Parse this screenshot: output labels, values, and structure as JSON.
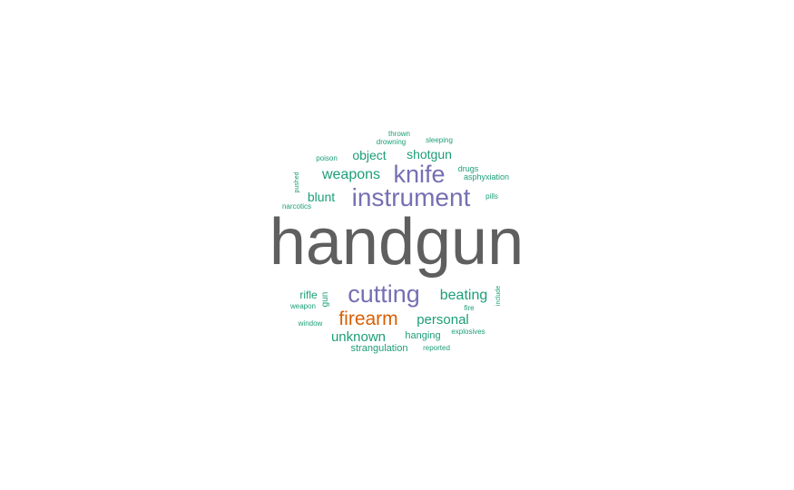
{
  "chart_data": {
    "type": "wordcloud",
    "colors": {
      "grey": "#5f5f5f",
      "purple": "#7570b3",
      "orange": "#d95f02",
      "green": "#1b9e77"
    },
    "words": [
      {
        "text": "handgun",
        "weight": 100,
        "color": "grey"
      },
      {
        "text": "instrument",
        "weight": 40,
        "color": "purple"
      },
      {
        "text": "knife",
        "weight": 38,
        "color": "purple"
      },
      {
        "text": "cutting",
        "weight": 38,
        "color": "purple"
      },
      {
        "text": "firearm",
        "weight": 30,
        "color": "orange"
      },
      {
        "text": "beating",
        "weight": 22,
        "color": "green"
      },
      {
        "text": "weapons",
        "weight": 22,
        "color": "green"
      },
      {
        "text": "personal",
        "weight": 21,
        "color": "green"
      },
      {
        "text": "unknown",
        "weight": 21,
        "color": "green"
      },
      {
        "text": "object",
        "weight": 20,
        "color": "green"
      },
      {
        "text": "shotgun",
        "weight": 20,
        "color": "green"
      },
      {
        "text": "blunt",
        "weight": 20,
        "color": "green"
      },
      {
        "text": "rifle",
        "weight": 17,
        "color": "green"
      },
      {
        "text": "gun",
        "weight": 14,
        "color": "green"
      },
      {
        "text": "strangulation",
        "weight": 14,
        "color": "green"
      },
      {
        "text": "hanging",
        "weight": 14,
        "color": "green"
      },
      {
        "text": "asphyxiation",
        "weight": 12,
        "color": "green"
      },
      {
        "text": "drugs",
        "weight": 12,
        "color": "green"
      },
      {
        "text": "thrown",
        "weight": 11,
        "color": "green"
      },
      {
        "text": "drowning",
        "weight": 11,
        "color": "green"
      },
      {
        "text": "sleeping",
        "weight": 11,
        "color": "green"
      },
      {
        "text": "poison",
        "weight": 11,
        "color": "green"
      },
      {
        "text": "pills",
        "weight": 11,
        "color": "green"
      },
      {
        "text": "narcotics",
        "weight": 11,
        "color": "green"
      },
      {
        "text": "pushed",
        "weight": 10,
        "color": "green"
      },
      {
        "text": "weapon",
        "weight": 10,
        "color": "green"
      },
      {
        "text": "window",
        "weight": 10,
        "color": "green"
      },
      {
        "text": "fire",
        "weight": 10,
        "color": "green"
      },
      {
        "text": "explosives",
        "weight": 10,
        "color": "green"
      },
      {
        "text": "include",
        "weight": 10,
        "color": "green"
      },
      {
        "text": "reported",
        "weight": 10,
        "color": "green"
      }
    ]
  }
}
